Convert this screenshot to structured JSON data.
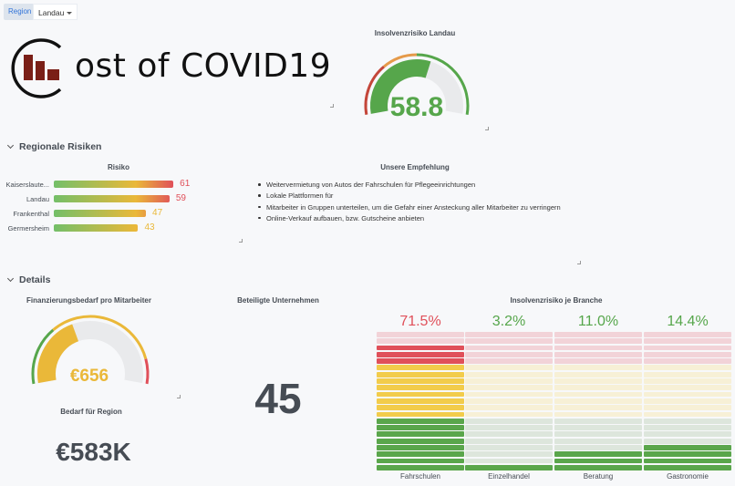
{
  "variables": {
    "region_label": "Region",
    "region_value": "Landau"
  },
  "logo": {
    "text": "ost of COVID19",
    "letter": "C",
    "color": "#7a1f17"
  },
  "insolvency_gauge": {
    "title": "Insolvenzrisiko Landau",
    "value": 58.8,
    "display": "58.8",
    "min": 0,
    "max": 100,
    "thresholds": [
      {
        "from": 0,
        "color": "#c4463a"
      },
      {
        "from": 30,
        "color": "#e59a4a"
      },
      {
        "from": 50,
        "color": "#56a64b"
      }
    ],
    "value_color": "#56a64b"
  },
  "rows": {
    "regional": "Regionale Risiken",
    "details": "Details"
  },
  "risk": {
    "title": "Risiko",
    "max": 100,
    "items": [
      {
        "label": "Kaiserslaute...",
        "value": 61,
        "color": "#e0505a"
      },
      {
        "label": "Landau",
        "value": 59,
        "color": "#e0505a"
      },
      {
        "label": "Frankenthal",
        "value": 47,
        "color": "#eab839"
      },
      {
        "label": "Germersheim",
        "value": 43,
        "color": "#eab839"
      }
    ]
  },
  "recommendations": {
    "title": "Unsere Empfehlung",
    "items": [
      "Weitervermietung von Autos der Fahrschulen für Pflegeeinrichtungen",
      "Lokale Plattformen für",
      "Mitarbeiter in Gruppen unterteilen, um die Gefahr einer Ansteckung aller Mitarbeiter zu verringern",
      "Online-Verkauf aufbauen, bzw. Gutscheine anbieten"
    ]
  },
  "funding_gauge": {
    "title": "Finanzierungsbedarf pro Mitarbeiter",
    "value": 656,
    "display": "€656",
    "min": 0,
    "max": 1640,
    "thresholds": [
      {
        "from": 0,
        "color": "#56a64b"
      },
      {
        "from": 490,
        "color": "#eab839"
      },
      {
        "from": 1435,
        "color": "#e0505a"
      }
    ],
    "value_color": "#eab839"
  },
  "region_need": {
    "title": "Bedarf für Region",
    "value": "€583K"
  },
  "companies": {
    "title": "Beteiligte Unternehmen",
    "value": "45"
  },
  "branch_risk": {
    "title": "Insolvenzrisiko je Branche",
    "max": 80,
    "items": [
      {
        "label": "Fahrschulen",
        "value": 71.5,
        "display": "71.5%",
        "color": "#e0505a"
      },
      {
        "label": "Einzelhandel",
        "value": 3.2,
        "display": "3.2%",
        "color": "#56a64b"
      },
      {
        "label": "Beratung",
        "value": 11.0,
        "display": "11.0%",
        "color": "#56a64b"
      },
      {
        "label": "Gastronomie",
        "value": 14.4,
        "display": "14.4%",
        "color": "#56a64b"
      }
    ]
  }
}
